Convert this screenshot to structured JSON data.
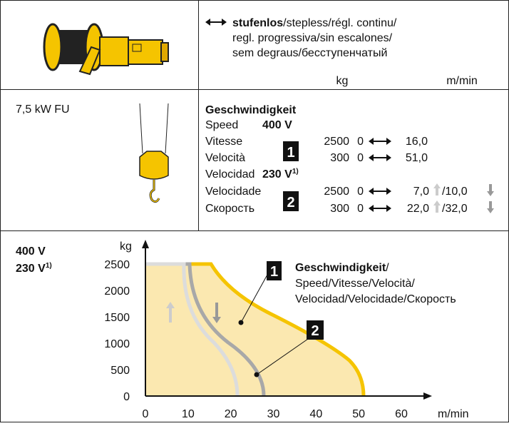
{
  "header": {
    "term": "stufenlos",
    "line_1": "/stepless/régl. continu/",
    "line_2": "regl. progressiva/sin escalones/",
    "line_3": "sem degraus/бесступенчатый",
    "col_load": "kg",
    "col_speed": "m/min"
  },
  "motor": {
    "label": "7,5 kW FU"
  },
  "speed_table": {
    "title": "Geschwindigkeit",
    "languages": [
      "Speed",
      "Vitesse",
      "Velocità",
      "Velocidad",
      "Velocidade",
      "Скорость"
    ],
    "voltage_1": "400 V",
    "voltage_2": "230 V",
    "voltage_2_note": "1)",
    "group_1": {
      "marker": "1",
      "rows": [
        {
          "load": "2500",
          "from": "0",
          "to": "16,0"
        },
        {
          "load": "300",
          "from": "0",
          "to": "51,0"
        }
      ]
    },
    "group_2": {
      "marker": "2",
      "rows": [
        {
          "load": "2500",
          "from": "0",
          "up": "7,0",
          "down": "/10,0"
        },
        {
          "load": "300",
          "from": "0",
          "up": "22,0",
          "down": "/32,0"
        }
      ]
    }
  },
  "chart": {
    "voltage_1": "400 V",
    "voltage_2": "230 V",
    "voltage_2_note": "1)",
    "y_label": "kg",
    "x_label": "m/min",
    "ylim": [
      0,
      2500
    ],
    "yticks": [
      0,
      500,
      1000,
      1500,
      2000,
      2500
    ],
    "xlim": [
      0,
      60
    ],
    "xticks": [
      0,
      10,
      20,
      30,
      40,
      50,
      60
    ],
    "legend": {
      "marker_1": "1",
      "title": "Geschwindigkeit",
      "title_suffix": "/",
      "line_1": "Speed/Vitesse/Velocità/",
      "line_2": "Velocidad/Velocidade/Скорость",
      "marker_2": "2"
    }
  }
}
